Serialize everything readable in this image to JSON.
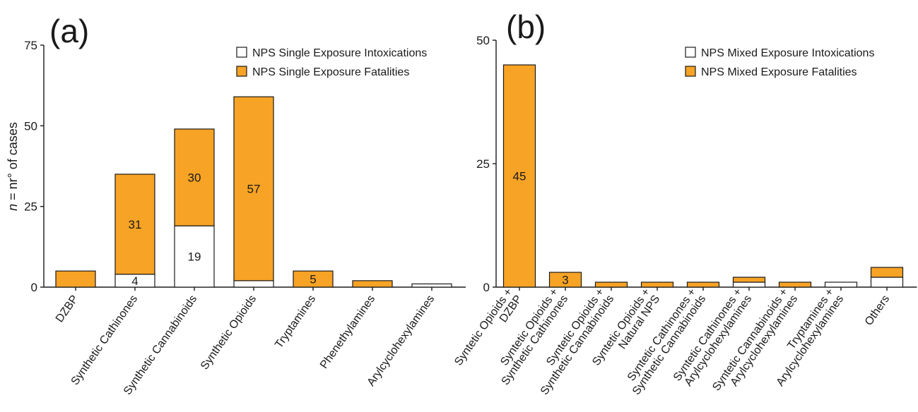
{
  "colors": {
    "fatal": "#F7A325",
    "intox": "#ffffff",
    "stroke": "#1a1a1a"
  },
  "chart_data": [
    {
      "type": "bar",
      "stacked": true,
      "panel": "(a)",
      "ylabel_prefix": "n",
      "ylabel_rest": " = nr° of cases",
      "ylim": [
        0,
        75
      ],
      "yticks": [
        0,
        25,
        50,
        75
      ],
      "categories": [
        "DZBP",
        "Synthetic Cathinones",
        "Synthetic Cannabinoids",
        "Synthetic Opioids",
        "Tryptamines",
        "Phenethylamines",
        "Arylcyclohexylamines"
      ],
      "series": [
        {
          "name": "NPS Single Exposure Intoxications",
          "key": "intox",
          "values": [
            0,
            4,
            19,
            2,
            0,
            0,
            1
          ]
        },
        {
          "name": "NPS Single Exposure Fatalities",
          "key": "fatal",
          "values": [
            5,
            31,
            30,
            57,
            5,
            2,
            0
          ]
        }
      ],
      "data_labels": [
        {
          "category": 1,
          "series": 0,
          "text": "4"
        },
        {
          "category": 1,
          "series": 1,
          "text": "31"
        },
        {
          "category": 2,
          "series": 0,
          "text": "19"
        },
        {
          "category": 2,
          "series": 1,
          "text": "30"
        },
        {
          "category": 3,
          "series": 1,
          "text": "57"
        },
        {
          "category": 4,
          "series": 1,
          "text": "5"
        }
      ],
      "legend_position": "top-right"
    },
    {
      "type": "bar",
      "stacked": true,
      "panel": "(b)",
      "ylim": [
        0,
        50
      ],
      "yticks": [
        0,
        25,
        50
      ],
      "categories": [
        [
          "Syntetic Opioids +",
          "DZBP"
        ],
        [
          "Syntetic Opioids +",
          "Synthetic Cathinones"
        ],
        [
          "Syntetic Opioids +",
          "Synthetic Cannabinoids"
        ],
        [
          "Syntetic Opioids +",
          "Natural NPS"
        ],
        [
          "Syntetic Cathinones +",
          "Synthetic Cannabinoids"
        ],
        [
          "Syntetic Cathinones +",
          "Arylcyclohexylamines"
        ],
        [
          "Syntetic Cannabinoids +",
          "Arylcyclohexylamines"
        ],
        [
          "Tryptamines +",
          "Arylcyclohexylamines"
        ],
        [
          "Others"
        ]
      ],
      "series": [
        {
          "name": "NPS Mixed Exposure Intoxications",
          "key": "intox",
          "values": [
            0,
            0,
            0,
            0,
            0,
            1,
            0,
            1,
            2
          ]
        },
        {
          "name": "NPS Mixed Exposure Fatalities",
          "key": "fatal",
          "values": [
            45,
            3,
            1,
            1,
            1,
            1,
            1,
            0,
            2
          ]
        }
      ],
      "data_labels": [
        {
          "category": 0,
          "series": 1,
          "text": "45"
        },
        {
          "category": 1,
          "series": 1,
          "text": "3"
        }
      ],
      "legend_position": "top-right"
    }
  ]
}
